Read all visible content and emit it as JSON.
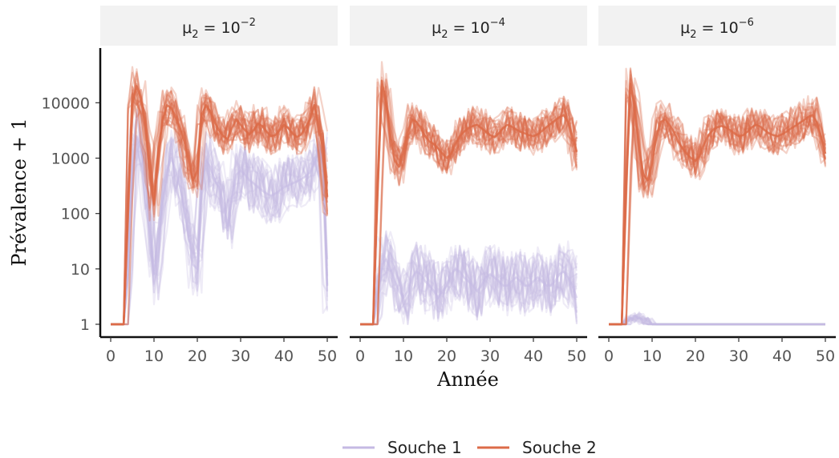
{
  "chart_data": {
    "type": "line",
    "xlabel": "Année",
    "ylabel": "Prévalence + 1",
    "y_scale": "log10",
    "xlim": [
      0,
      50
    ],
    "ylim": [
      1,
      50000
    ],
    "x_ticks": [
      0,
      10,
      20,
      30,
      40,
      50
    ],
    "x_tick_labels": [
      "0",
      "10",
      "20",
      "30",
      "40",
      "50"
    ],
    "y_ticks": [
      1,
      10,
      100,
      1000,
      10000
    ],
    "y_tick_labels": [
      "1",
      "10",
      "100",
      "1000",
      "10000"
    ],
    "legend": {
      "position": "bottom",
      "entries": [
        {
          "label": "Souche 1",
          "color": "#c5b9e3"
        },
        {
          "label": "Souche 2",
          "color": "#dc6b48"
        }
      ]
    },
    "panels": [
      {
        "strip": {
          "base": "μ",
          "sub": "2",
          "eq": " = 10",
          "exp": "−2"
        },
        "series": [
          {
            "name": "Souche 1",
            "color": "#c5b9e3",
            "x": [
              0,
              1,
              2,
              3,
              4,
              5,
              6,
              7,
              8,
              9,
              10,
              11,
              12,
              13,
              14,
              15,
              16,
              17,
              18,
              19,
              20,
              21,
              22,
              23,
              24,
              25,
              26,
              27,
              28,
              29,
              30,
              31,
              32,
              33,
              34,
              35,
              36,
              37,
              38,
              39,
              40,
              41,
              42,
              43,
              44,
              45,
              46,
              47,
              48,
              49,
              50
            ],
            "y": [
              1,
              1,
              1,
              1,
              20,
              600,
              2500,
              1500,
              400,
              60,
              8,
              25,
              150,
              600,
              1000,
              600,
              300,
              120,
              40,
              12,
              10,
              300,
              900,
              700,
              400,
              300,
              150,
              60,
              200,
              500,
              600,
              500,
              400,
              350,
              300,
              260,
              230,
              210,
              230,
              260,
              300,
              320,
              350,
              380,
              420,
              470,
              550,
              800,
              1400,
              900,
              5
            ]
          },
          {
            "name": "Souche 2",
            "color": "#dc6b48",
            "x": [
              0,
              1,
              2,
              3,
              4,
              5,
              6,
              7,
              8,
              9,
              10,
              11,
              12,
              13,
              14,
              15,
              16,
              17,
              18,
              19,
              20,
              21,
              22,
              23,
              24,
              25,
              26,
              27,
              28,
              29,
              30,
              31,
              32,
              33,
              34,
              35,
              36,
              37,
              38,
              39,
              40,
              41,
              42,
              43,
              44,
              45,
              46,
              47,
              48,
              49,
              50
            ],
            "y": [
              1,
              1,
              1,
              1,
              150,
              10000,
              20000,
              12000,
              3500,
              800,
              150,
              1200,
              5000,
              9000,
              8000,
              5500,
              3500,
              2000,
              900,
              400,
              600,
              6000,
              9000,
              7000,
              4500,
              3200,
              2500,
              2200,
              3500,
              5000,
              4000,
              3200,
              2700,
              3200,
              4200,
              3800,
              3000,
              2500,
              2600,
              3200,
              4000,
              3500,
              2800,
              2400,
              2700,
              3600,
              5000,
              9000,
              4000,
              1500,
              200
            ]
          }
        ]
      },
      {
        "strip": {
          "base": "μ",
          "sub": "2",
          "eq": " = 10",
          "exp": "−4"
        },
        "series": [
          {
            "name": "Souche 1",
            "color": "#c5b9e3",
            "x": [
              0,
              1,
              2,
              3,
              4,
              5,
              6,
              7,
              8,
              9,
              10,
              11,
              12,
              13,
              14,
              15,
              16,
              17,
              18,
              19,
              20,
              21,
              22,
              23,
              24,
              25,
              26,
              27,
              28,
              29,
              30,
              31,
              32,
              33,
              34,
              35,
              36,
              37,
              38,
              39,
              40,
              41,
              42,
              43,
              44,
              45,
              46,
              47,
              48,
              49,
              50
            ],
            "y": [
              1,
              1,
              1,
              1,
              3,
              12,
              15,
              10,
              6,
              4,
              3,
              4,
              7,
              9,
              8,
              6,
              5,
              4,
              3,
              4,
              5,
              8,
              10,
              9,
              7,
              6,
              5,
              4,
              5,
              7,
              8,
              7,
              6,
              5,
              5,
              6,
              7,
              6,
              5,
              5,
              6,
              7,
              6,
              5,
              5,
              6,
              8,
              9,
              7,
              5,
              3
            ]
          },
          {
            "name": "Souche 2",
            "color": "#dc6b48",
            "x": [
              0,
              1,
              2,
              3,
              4,
              5,
              6,
              7,
              8,
              9,
              10,
              11,
              12,
              13,
              14,
              15,
              16,
              17,
              18,
              19,
              20,
              21,
              22,
              23,
              24,
              25,
              26,
              27,
              28,
              29,
              30,
              31,
              32,
              33,
              34,
              35,
              36,
              37,
              38,
              39,
              40,
              41,
              42,
              43,
              44,
              45,
              46,
              47,
              48,
              49,
              50
            ],
            "y": [
              1,
              1,
              1,
              1,
              300,
              25000,
              10000,
              2500,
              900,
              700,
              1200,
              3000,
              5000,
              4500,
              3500,
              2500,
              2000,
              1800,
              1500,
              1200,
              1000,
              1200,
              1800,
              2500,
              3000,
              3500,
              3800,
              4000,
              3500,
              3000,
              2600,
              2400,
              2800,
              3500,
              4000,
              3700,
              3300,
              3000,
              2800,
              2600,
              2500,
              2700,
              3100,
              3600,
              4200,
              4800,
              5500,
              6000,
              4500,
              2500,
              1300
            ]
          }
        ]
      },
      {
        "strip": {
          "base": "μ",
          "sub": "2",
          "eq": " = 10",
          "exp": "−6"
        },
        "series": [
          {
            "name": "Souche 1",
            "color": "#c5b9e3",
            "x": [
              0,
              1,
              2,
              3,
              4,
              5,
              6,
              7,
              8,
              9,
              10,
              11,
              12,
              13,
              14,
              15,
              16,
              17,
              18,
              19,
              20,
              21,
              22,
              23,
              24,
              25,
              26,
              27,
              28,
              29,
              30,
              31,
              32,
              33,
              34,
              35,
              36,
              37,
              38,
              39,
              40,
              41,
              42,
              43,
              44,
              45,
              46,
              47,
              48,
              49,
              50
            ],
            "y": [
              1,
              1,
              1,
              1,
              1.1,
              1.3,
              1.4,
              1.3,
              1.2,
              1.1,
              1,
              1,
              1,
              1,
              1,
              1,
              1,
              1,
              1,
              1,
              1,
              1,
              1,
              1,
              1,
              1,
              1,
              1,
              1,
              1,
              1,
              1,
              1,
              1,
              1,
              1,
              1,
              1,
              1,
              1,
              1,
              1,
              1,
              1,
              1,
              1,
              1,
              1,
              1,
              1,
              1
            ]
          },
          {
            "name": "Souche 2",
            "color": "#dc6b48",
            "x": [
              0,
              1,
              2,
              3,
              4,
              5,
              6,
              7,
              8,
              9,
              10,
              11,
              12,
              13,
              14,
              15,
              16,
              17,
              18,
              19,
              20,
              21,
              22,
              23,
              24,
              25,
              26,
              27,
              28,
              29,
              30,
              31,
              32,
              33,
              34,
              35,
              36,
              37,
              38,
              39,
              40,
              41,
              42,
              43,
              44,
              45,
              46,
              47,
              48,
              49,
              50
            ],
            "y": [
              1,
              1,
              1,
              1,
              300,
              22000,
              8000,
              1500,
              500,
              400,
              800,
              2500,
              4500,
              5000,
              4000,
              3000,
              2000,
              1500,
              1200,
              1000,
              900,
              1100,
              1800,
              2600,
              3200,
              3600,
              3800,
              3600,
              3200,
              2800,
              2500,
              2600,
              3000,
              3600,
              4000,
              3700,
              3200,
              2800,
              2600,
              2500,
              2700,
              3000,
              3400,
              3800,
              4300,
              4800,
              5500,
              6000,
              4500,
              2500,
              1200
            ]
          }
        ]
      }
    ]
  }
}
